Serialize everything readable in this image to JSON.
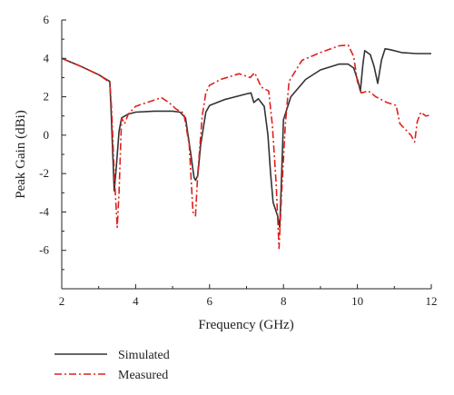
{
  "chart_data": {
    "type": "line",
    "xlabel": "Frequency (GHz)",
    "ylabel": "Peak Gain (dBi)",
    "xlim": [
      2,
      12
    ],
    "ylim": [
      -8,
      6
    ],
    "xticks": [
      2,
      4,
      6,
      8,
      10,
      12
    ],
    "yticks": [
      -6,
      -4,
      -2,
      0,
      2,
      4,
      6
    ],
    "grid": false,
    "legend_position": "bottom-left",
    "series": [
      {
        "name": "Simulated",
        "color": "#333333",
        "style": "solid",
        "points": [
          [
            2.0,
            4.0
          ],
          [
            2.5,
            3.6
          ],
          [
            3.0,
            3.15
          ],
          [
            3.3,
            2.8
          ],
          [
            3.33,
            1.6
          ],
          [
            3.38,
            -1.0
          ],
          [
            3.42,
            -2.9
          ],
          [
            3.48,
            -1.6
          ],
          [
            3.55,
            0.2
          ],
          [
            3.62,
            0.9
          ],
          [
            3.8,
            1.1
          ],
          [
            4.0,
            1.2
          ],
          [
            4.5,
            1.25
          ],
          [
            5.0,
            1.25
          ],
          [
            5.2,
            1.2
          ],
          [
            5.35,
            0.9
          ],
          [
            5.48,
            -0.8
          ],
          [
            5.58,
            -2.2
          ],
          [
            5.62,
            -2.35
          ],
          [
            5.68,
            -2.1
          ],
          [
            5.76,
            -0.5
          ],
          [
            5.9,
            1.2
          ],
          [
            6.0,
            1.55
          ],
          [
            6.4,
            1.85
          ],
          [
            7.0,
            2.15
          ],
          [
            7.12,
            2.2
          ],
          [
            7.2,
            1.7
          ],
          [
            7.32,
            1.9
          ],
          [
            7.48,
            1.5
          ],
          [
            7.58,
            0.0
          ],
          [
            7.65,
            -2.0
          ],
          [
            7.72,
            -3.5
          ],
          [
            7.84,
            -4.2
          ],
          [
            7.9,
            -4.8
          ],
          [
            7.95,
            -2.0
          ],
          [
            8.0,
            0.8
          ],
          [
            8.2,
            2.0
          ],
          [
            8.6,
            2.9
          ],
          [
            9.0,
            3.4
          ],
          [
            9.5,
            3.7
          ],
          [
            9.75,
            3.7
          ],
          [
            9.9,
            3.5
          ],
          [
            10.02,
            2.8
          ],
          [
            10.08,
            2.3
          ],
          [
            10.15,
            3.7
          ],
          [
            10.2,
            4.4
          ],
          [
            10.35,
            4.2
          ],
          [
            10.45,
            3.6
          ],
          [
            10.55,
            2.7
          ],
          [
            10.65,
            3.9
          ],
          [
            10.75,
            4.5
          ],
          [
            10.9,
            4.45
          ],
          [
            11.2,
            4.3
          ],
          [
            11.6,
            4.25
          ],
          [
            12.0,
            4.25
          ]
        ]
      },
      {
        "name": "Measured",
        "color": "#e0201b",
        "style": "dashdot",
        "points": [
          [
            2.0,
            4.0
          ],
          [
            2.5,
            3.6
          ],
          [
            3.0,
            3.15
          ],
          [
            3.3,
            2.75
          ],
          [
            3.35,
            1.4
          ],
          [
            3.42,
            -2.0
          ],
          [
            3.5,
            -4.8
          ],
          [
            3.55,
            -3.0
          ],
          [
            3.62,
            0.9
          ],
          [
            3.7,
            0.6
          ],
          [
            3.8,
            1.1
          ],
          [
            4.0,
            1.5
          ],
          [
            4.3,
            1.7
          ],
          [
            4.7,
            1.95
          ],
          [
            4.9,
            1.7
          ],
          [
            5.1,
            1.35
          ],
          [
            5.3,
            1.15
          ],
          [
            5.45,
            -0.5
          ],
          [
            5.55,
            -4.0
          ],
          [
            5.62,
            -4.2
          ],
          [
            5.68,
            -2.0
          ],
          [
            5.8,
            1.0
          ],
          [
            5.9,
            2.2
          ],
          [
            6.0,
            2.6
          ],
          [
            6.3,
            2.9
          ],
          [
            6.8,
            3.2
          ],
          [
            7.1,
            3.0
          ],
          [
            7.22,
            3.25
          ],
          [
            7.4,
            2.5
          ],
          [
            7.6,
            2.3
          ],
          [
            7.7,
            0.5
          ],
          [
            7.8,
            -2.5
          ],
          [
            7.88,
            -5.9
          ],
          [
            7.95,
            -3.0
          ],
          [
            8.05,
            0.5
          ],
          [
            8.15,
            2.8
          ],
          [
            8.5,
            3.9
          ],
          [
            9.0,
            4.3
          ],
          [
            9.5,
            4.65
          ],
          [
            9.75,
            4.7
          ],
          [
            9.9,
            4.1
          ],
          [
            10.0,
            2.8
          ],
          [
            10.1,
            2.2
          ],
          [
            10.3,
            2.3
          ],
          [
            10.5,
            2.0
          ],
          [
            10.8,
            1.7
          ],
          [
            11.05,
            1.55
          ],
          [
            11.15,
            0.6
          ],
          [
            11.3,
            0.3
          ],
          [
            11.45,
            0.0
          ],
          [
            11.55,
            -0.35
          ],
          [
            11.62,
            0.7
          ],
          [
            11.72,
            1.2
          ],
          [
            11.85,
            1.0
          ],
          [
            12.0,
            1.05
          ]
        ]
      }
    ]
  }
}
